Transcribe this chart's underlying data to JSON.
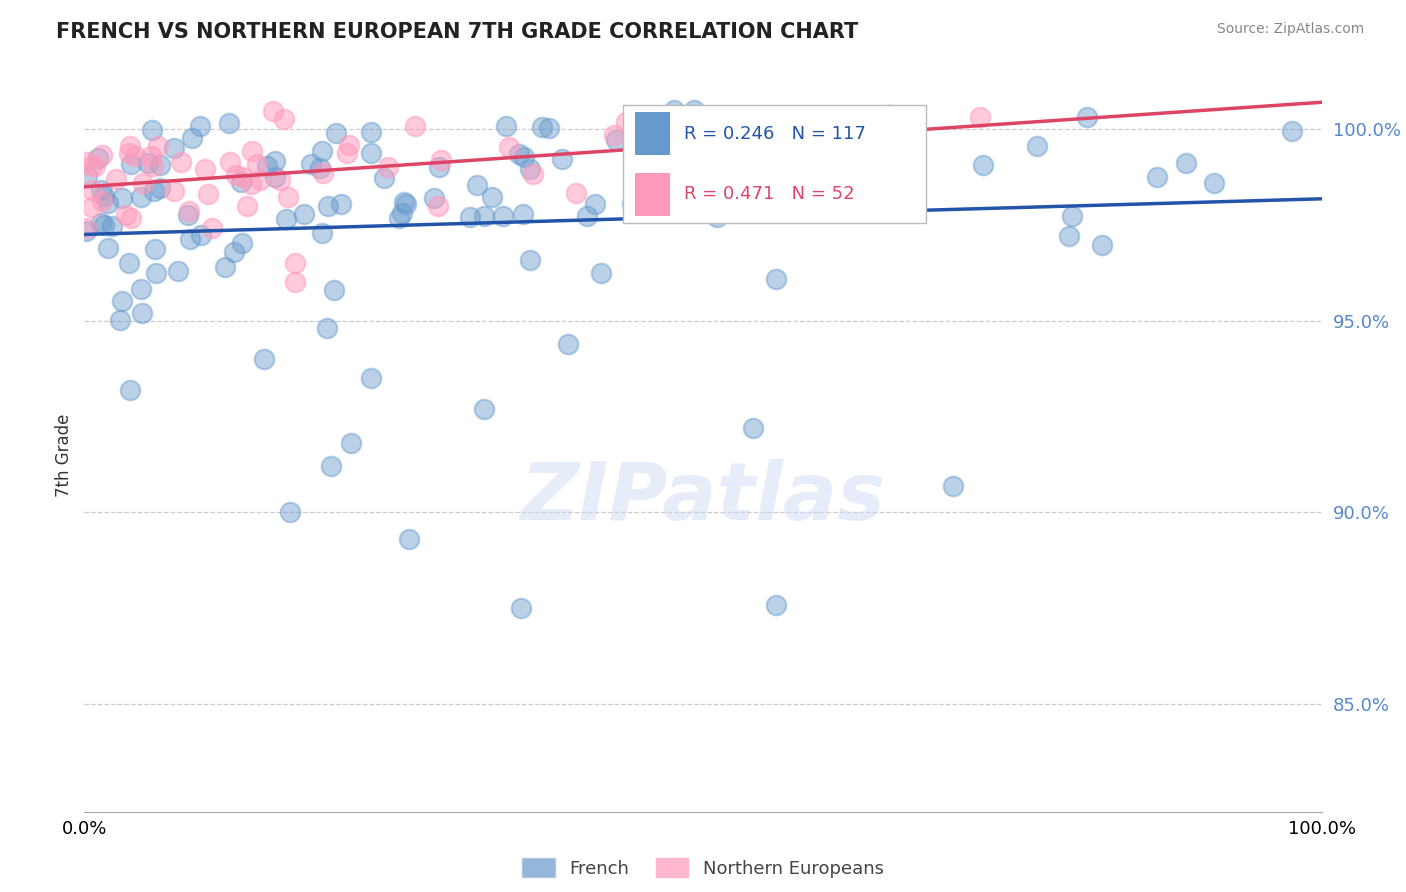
{
  "title": "FRENCH VS NORTHERN EUROPEAN 7TH GRADE CORRELATION CHART",
  "source_text": "Source: ZipAtlas.com",
  "ylabel": "7th Grade",
  "x_min": 0.0,
  "x_max": 1.0,
  "y_min": 0.822,
  "y_max": 1.008,
  "y_ticks": [
    0.85,
    0.9,
    0.95,
    1.0
  ],
  "y_tick_labels": [
    "85.0%",
    "90.0%",
    "95.0%",
    "100.0%"
  ],
  "blue_color": "#6699cc",
  "pink_color": "#ff99bb",
  "blue_line_color": "#2255aa",
  "pink_line_color": "#dd4466",
  "blue_R": 0.246,
  "blue_N": 117,
  "pink_R": 0.471,
  "pink_N": 52,
  "legend_label_blue": "French",
  "legend_label_pink": "Northern Europeans",
  "watermark": "ZIPatlas",
  "background_color": "#ffffff",
  "title_color": "#222222",
  "right_axis_color": "#5588cc",
  "grid_color": "#cccccc",
  "blue_seed": 42,
  "pink_seed": 7
}
